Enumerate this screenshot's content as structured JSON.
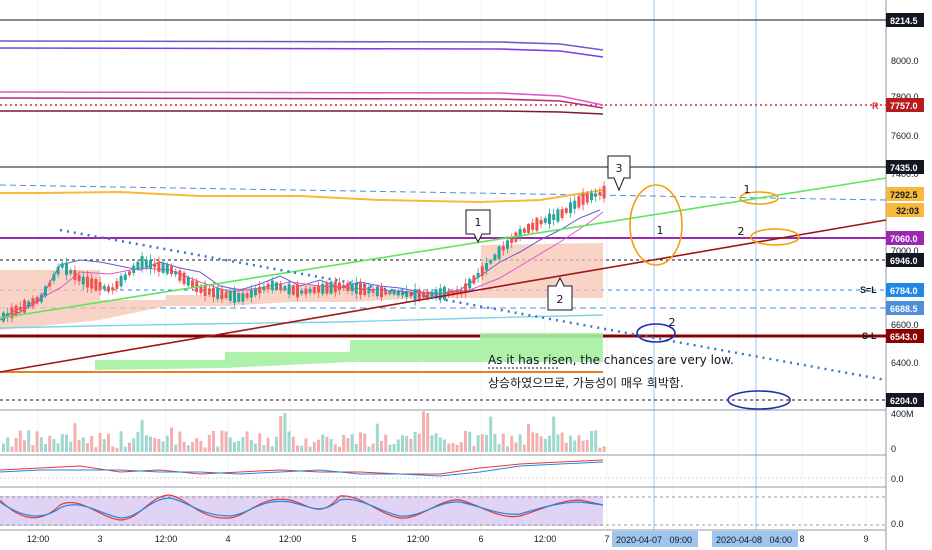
{
  "price_axis": {
    "ticks": [
      "8000.0",
      "7800.0",
      "7600.0",
      "7400.0",
      "7000.0",
      "6600.0",
      "6400.0"
    ],
    "tags": [
      {
        "text": "8214.5",
        "bg": "#131722",
        "fg": "#ffffff",
        "price": 8214.5
      },
      {
        "text": "7757.0",
        "bg": "#b71c1c",
        "fg": "#ffffff",
        "price": 7757.0
      },
      {
        "text": "7435.0",
        "bg": "#131722",
        "fg": "#ffffff",
        "price": 7435.0
      },
      {
        "text": "7292.5",
        "bg": "#f6b93b",
        "fg": "#131722",
        "price": 7292.5
      },
      {
        "text": "32:03",
        "bg": "#f6b93b",
        "fg": "#131722",
        "price": 7230.0
      },
      {
        "text": "7060.0",
        "bg": "#9c27b0",
        "fg": "#ffffff",
        "price": 7060.0
      },
      {
        "text": "6946.0",
        "bg": "#131722",
        "fg": "#ffffff",
        "price": 6946.0
      },
      {
        "text": "6784.0",
        "bg": "#1e88e5",
        "fg": "#ffffff",
        "price": 6784.0
      },
      {
        "text": "6688.5",
        "bg": "#4f8fd9",
        "fg": "#ffffff",
        "price": 6688.5
      },
      {
        "text": "6543.0",
        "bg": "#8b0000",
        "fg": "#ffffff",
        "price": 6543.0
      },
      {
        "text": "6204.0",
        "bg": "#131722",
        "fg": "#ffffff",
        "price": 6204.0
      }
    ],
    "line_labels": [
      {
        "text": "R",
        "color": "#d32f2f",
        "price": 7757.0
      },
      {
        "text": "S=L",
        "color": "#131722",
        "price": 6784.0
      },
      {
        "text": "S-L",
        "color": "#131722",
        "price": 6543.0
      }
    ]
  },
  "volume_axis": {
    "top": "400M",
    "bottom": "0"
  },
  "macd_axis": {
    "label": "0.0"
  },
  "stoch_axis": {
    "label": "0.0"
  },
  "time_axis": {
    "labels": [
      "12:00",
      "3",
      "12:00",
      "4",
      "12:00",
      "5",
      "12:00",
      "6",
      "12:00",
      "7",
      "8",
      "9"
    ],
    "highlights": [
      "2020-04-07   09:00",
      "2020-04-08   04:00"
    ]
  },
  "annotations": {
    "marker_1": "1",
    "marker_2": "2",
    "marker_3": "3",
    "circle_1": "1",
    "circle_2": "2",
    "right_1": "1",
    "right_2": "2",
    "note_en": "As it has risen, the chances are very low.",
    "note_ko": "상승하였으므로, 가능성이 매우 희박함."
  },
  "colors": {
    "green_trend": "#5ce65c",
    "red_trend": "#a01515",
    "ichimoku_cloud": "#f8c4b4",
    "green_band": "#a5f0a0",
    "orange_circle": "#f59e0b",
    "blue_circle": "#1d2fa8"
  }
}
